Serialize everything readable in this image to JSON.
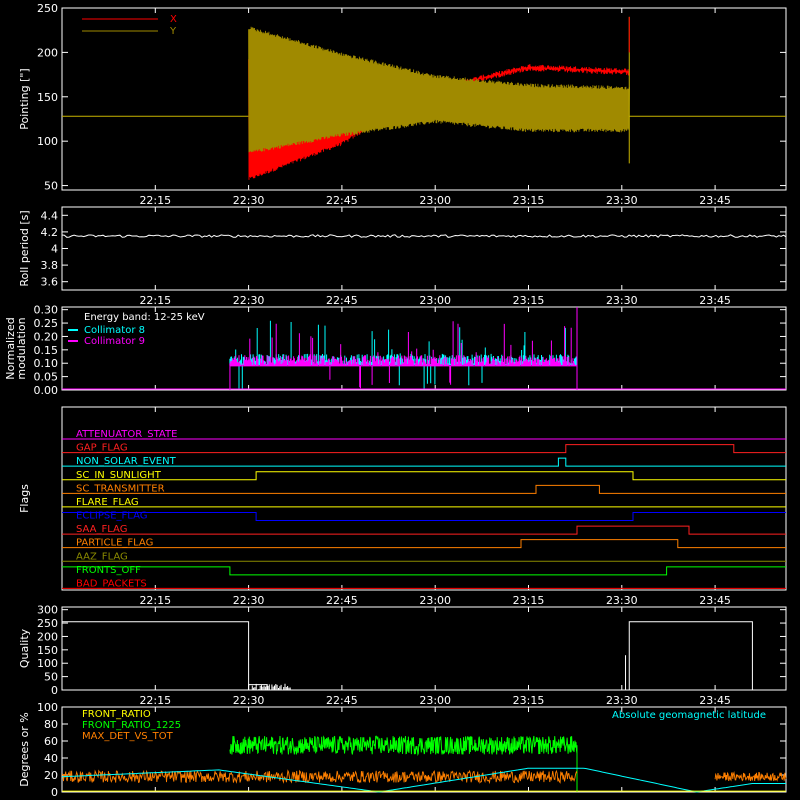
{
  "chart_data": [
    {
      "type": "line",
      "panel": "pointing",
      "ylabel": "Pointing [\"]",
      "ylim": [
        45,
        250
      ],
      "yticks": [
        50,
        100,
        150,
        200,
        250
      ],
      "xticks": [
        "22:15",
        "22:30",
        "22:45",
        "23:00",
        "23:15",
        "23:30",
        "23:45"
      ],
      "series": [
        {
          "name": "X",
          "color": "#ff0000",
          "baseline": 128,
          "envelope_min": [
            [
              22.5,
              55
            ],
            [
              22.75,
              95
            ],
            [
              23.0,
              158
            ],
            [
              23.25,
              183
            ],
            [
              23.52,
              178
            ]
          ],
          "envelope_max": [
            [
              22.5,
              195
            ],
            [
              22.75,
              175
            ],
            [
              23.0,
              160
            ],
            [
              23.25,
              183
            ],
            [
              23.52,
              178
            ]
          ]
        },
        {
          "name": "Y",
          "color": "#a08a00",
          "baseline": 128,
          "envelope_min": [
            [
              22.5,
              85
            ],
            [
              22.75,
              105
            ],
            [
              23.0,
              120
            ],
            [
              23.25,
              110
            ],
            [
              23.52,
              110
            ]
          ],
          "envelope_max": [
            [
              22.5,
              230
            ],
            [
              22.75,
              200
            ],
            [
              23.0,
              175
            ],
            [
              23.25,
              165
            ],
            [
              23.52,
              162
            ]
          ]
        }
      ]
    },
    {
      "type": "line",
      "panel": "roll-period",
      "ylabel": "Roll period [s]",
      "ylim": [
        3.5,
        4.5
      ],
      "yticks": [
        3.6,
        3.8,
        4.0,
        4.2,
        4.4
      ],
      "xticks": [
        "22:15",
        "22:30",
        "22:45",
        "23:00",
        "23:15",
        "23:30",
        "23:45"
      ],
      "series": [
        {
          "name": "",
          "color": "#ffffff",
          "value": 4.15
        }
      ]
    },
    {
      "type": "bar",
      "panel": "modulation",
      "ylabel": "Normalized modulation",
      "ylim": [
        0,
        0.31
      ],
      "yticks": [
        "0.00",
        "0.05",
        "0.10",
        "0.15",
        "0.20",
        "0.25",
        "0.30"
      ],
      "xticks": [
        "22:15",
        "22:30",
        "22:45",
        "23:00",
        "23:15",
        "23:30",
        "23:45"
      ],
      "annotation": "Energy band: 12-25 keV",
      "start": 22.45,
      "end": 23.38,
      "series": [
        {
          "name": "Collimator 8",
          "color": "#00ffff",
          "baseline": 0.095
        },
        {
          "name": "Collimator 9",
          "color": "#ff00ff",
          "baseline": 0.09
        }
      ]
    },
    {
      "type": "line",
      "panel": "flags",
      "ylabel": "Flags",
      "xticks": [
        "22:15",
        "22:30",
        "22:45",
        "23:00",
        "23:15",
        "23:30",
        "23:45"
      ],
      "flags": [
        {
          "name": "ATTENUATOR_STATE",
          "color": "#ff00ff",
          "steps": [
            [
              22.0,
              0
            ]
          ]
        },
        {
          "name": "GAP_FLAG",
          "color": "#ff2020",
          "steps": [
            [
              22.0,
              0
            ],
            [
              23.35,
              1
            ],
            [
              23.8,
              0
            ]
          ]
        },
        {
          "name": "NON_SOLAR_EVENT",
          "color": "#00ffff",
          "steps": [
            [
              22.0,
              0
            ],
            [
              23.33,
              1
            ],
            [
              23.35,
              0
            ]
          ]
        },
        {
          "name": "SC_IN_SUNLIGHT",
          "color": "#ffff00",
          "steps": [
            [
              22.0,
              0
            ],
            [
              22.52,
              1
            ],
            [
              23.53,
              0
            ]
          ]
        },
        {
          "name": "SC_TRANSMITTER",
          "color": "#ff8000",
          "steps": [
            [
              22.0,
              0
            ],
            [
              23.27,
              1
            ],
            [
              23.44,
              0
            ]
          ]
        },
        {
          "name": "FLARE_FLAG",
          "color": "#ffff00",
          "steps": [
            [
              22.0,
              0
            ]
          ]
        },
        {
          "name": "ECLIPSE_FLAG",
          "color": "#0000ff",
          "steps": [
            [
              22.0,
              1
            ],
            [
              22.52,
              0
            ],
            [
              23.53,
              1
            ]
          ]
        },
        {
          "name": "SAA_FLAG",
          "color": "#ff2020",
          "steps": [
            [
              22.0,
              0
            ],
            [
              23.38,
              1
            ],
            [
              23.68,
              0
            ]
          ]
        },
        {
          "name": "PARTICLE_FLAG",
          "color": "#ff8000",
          "steps": [
            [
              22.0,
              0
            ],
            [
              23.23,
              1
            ],
            [
              23.65,
              0
            ]
          ]
        },
        {
          "name": "AAZ_FLAG",
          "color": "#8a8a00",
          "steps": [
            [
              22.0,
              0
            ]
          ]
        },
        {
          "name": "FRONTS_OFF",
          "color": "#00ff00",
          "steps": [
            [
              22.0,
              1
            ],
            [
              22.45,
              0
            ],
            [
              23.62,
              1
            ]
          ]
        },
        {
          "name": "BAD_PACKETS",
          "color": "#ff0000",
          "steps": [
            [
              22.0,
              0
            ]
          ]
        }
      ]
    },
    {
      "type": "bar",
      "panel": "quality",
      "ylabel": "Quality",
      "ylim": [
        0,
        310
      ],
      "yticks": [
        0,
        50,
        100,
        150,
        200,
        250,
        300
      ],
      "xticks": [
        "22:15",
        "22:30",
        "22:45",
        "23:00",
        "23:15",
        "23:30",
        "23:45"
      ],
      "series": [
        {
          "name": "",
          "color": "#ffffff",
          "segments": [
            [
              22.0,
              22.5,
              255
            ],
            [
              22.5,
              22.55,
              20
            ],
            [
              23.52,
              23.85,
              255
            ]
          ]
        }
      ]
    },
    {
      "type": "line",
      "panel": "ratios",
      "ylabel": "Degrees or %",
      "ylim": [
        0,
        100
      ],
      "yticks": [
        0,
        20,
        40,
        60,
        80,
        100
      ],
      "xticks": [
        "22:15",
        "22:30",
        "22:45",
        "23:00",
        "23:15",
        "23:30",
        "23:45"
      ],
      "annotation": "Absolute geomagnetic latitude",
      "series": [
        {
          "name": "FRONT_RATIO",
          "color": "#ffff00",
          "value": 0
        },
        {
          "name": "FRONT_RATIO_1225",
          "color": "#00ff00",
          "baseline": 55,
          "start": 22.45,
          "end": 23.38
        },
        {
          "name": "MAX_DET_VS_TOT",
          "color": "#ff8000",
          "baseline": 18,
          "start": 22.0,
          "end": 23.38
        },
        {
          "name": "",
          "color": "#00ffff",
          "curve": [
            [
              22.0,
              18
            ],
            [
              22.42,
              26
            ],
            [
              22.85,
              0
            ],
            [
              23.25,
              28
            ],
            [
              23.4,
              28
            ],
            [
              23.7,
              0
            ],
            [
              23.85,
              10
            ]
          ]
        }
      ]
    }
  ]
}
